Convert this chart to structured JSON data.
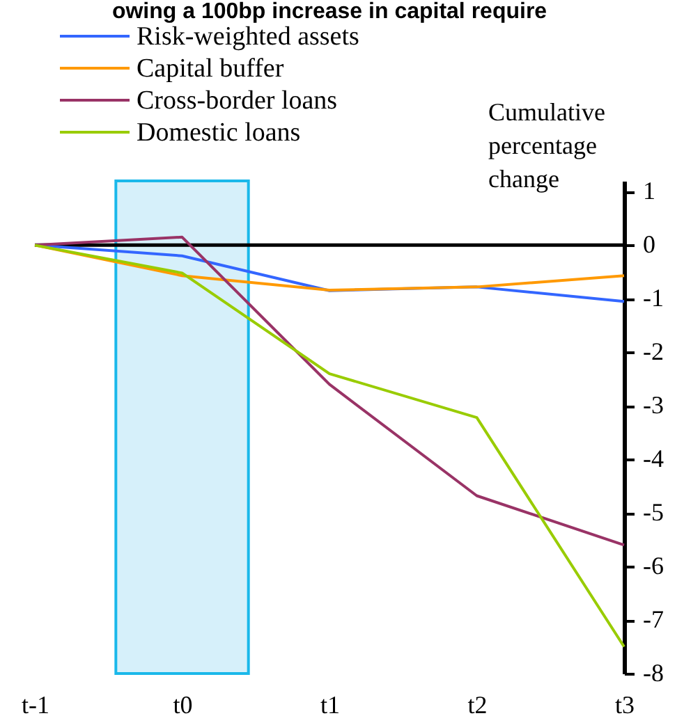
{
  "chart_data": {
    "type": "line",
    "title": "owing a 100bp increase in capital require",
    "ylabel": "Cumulative percentage change",
    "categories": [
      "t-1",
      "t0",
      "t1",
      "t2",
      "t3"
    ],
    "series": [
      {
        "name": "Risk-weighted assets",
        "color": "#3366ff",
        "values": [
          0,
          -0.2,
          -0.85,
          -0.78,
          -1.05
        ]
      },
      {
        "name": "Capital buffer",
        "color": "#ff9900",
        "values": [
          0,
          -0.57,
          -0.84,
          -0.78,
          -0.57
        ]
      },
      {
        "name": "Cross-border loans",
        "color": "#993366",
        "values": [
          0,
          0.15,
          -2.6,
          -4.68,
          -5.6
        ]
      },
      {
        "name": "Domestic loans",
        "color": "#99cc00",
        "values": [
          0,
          -0.52,
          -2.4,
          -3.22,
          -7.5
        ]
      }
    ],
    "ylim": [
      -8,
      1.2
    ],
    "yticks": [
      -8,
      -7,
      -6,
      -5,
      -4,
      -3,
      -2,
      -1,
      0,
      1
    ],
    "ref_lines": [
      {
        "axis": "y",
        "value": 0,
        "color": "#000000"
      }
    ],
    "bands": [
      {
        "axis": "x",
        "from": "t0",
        "to": "t0",
        "color": "#d6f0fa"
      }
    ],
    "legend": "top left",
    "grid": false,
    "marker": "none",
    "line_style": "solid"
  }
}
